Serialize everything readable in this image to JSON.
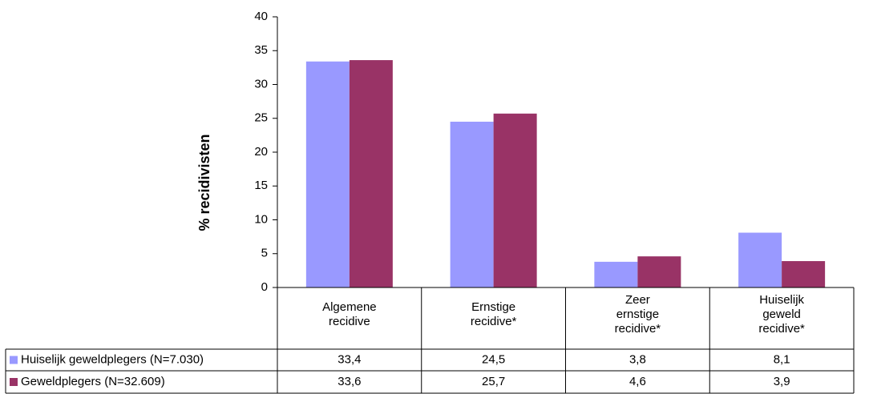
{
  "chart_data": {
    "type": "bar",
    "title": "",
    "xlabel": "",
    "ylabel": "% recidivisten",
    "ylim": [
      0,
      40
    ],
    "yticks": [
      0,
      5,
      10,
      15,
      20,
      25,
      30,
      35,
      40
    ],
    "grid": false,
    "legend": "data-table",
    "categories": [
      [
        "Algemene",
        "recidive"
      ],
      [
        "Ernstige",
        "recidive*"
      ],
      [
        "Zeer",
        "ernstige",
        "recidive*"
      ],
      [
        "Huiselijk",
        "geweld",
        "recidive*"
      ]
    ],
    "series": [
      {
        "name": "Huiselijk geweldplegers (N=7.030)",
        "color": "#9999ff",
        "values": [
          33.4,
          24.5,
          3.8,
          8.1
        ],
        "labels": [
          "33,4",
          "24,5",
          "3,8",
          "8,1"
        ]
      },
      {
        "name": "Geweldplegers (N=32.609)",
        "color": "#993366",
        "values": [
          33.6,
          25.7,
          4.6,
          3.9
        ],
        "labels": [
          "33,6",
          "25,7",
          "4,6",
          "3,9"
        ]
      }
    ]
  }
}
